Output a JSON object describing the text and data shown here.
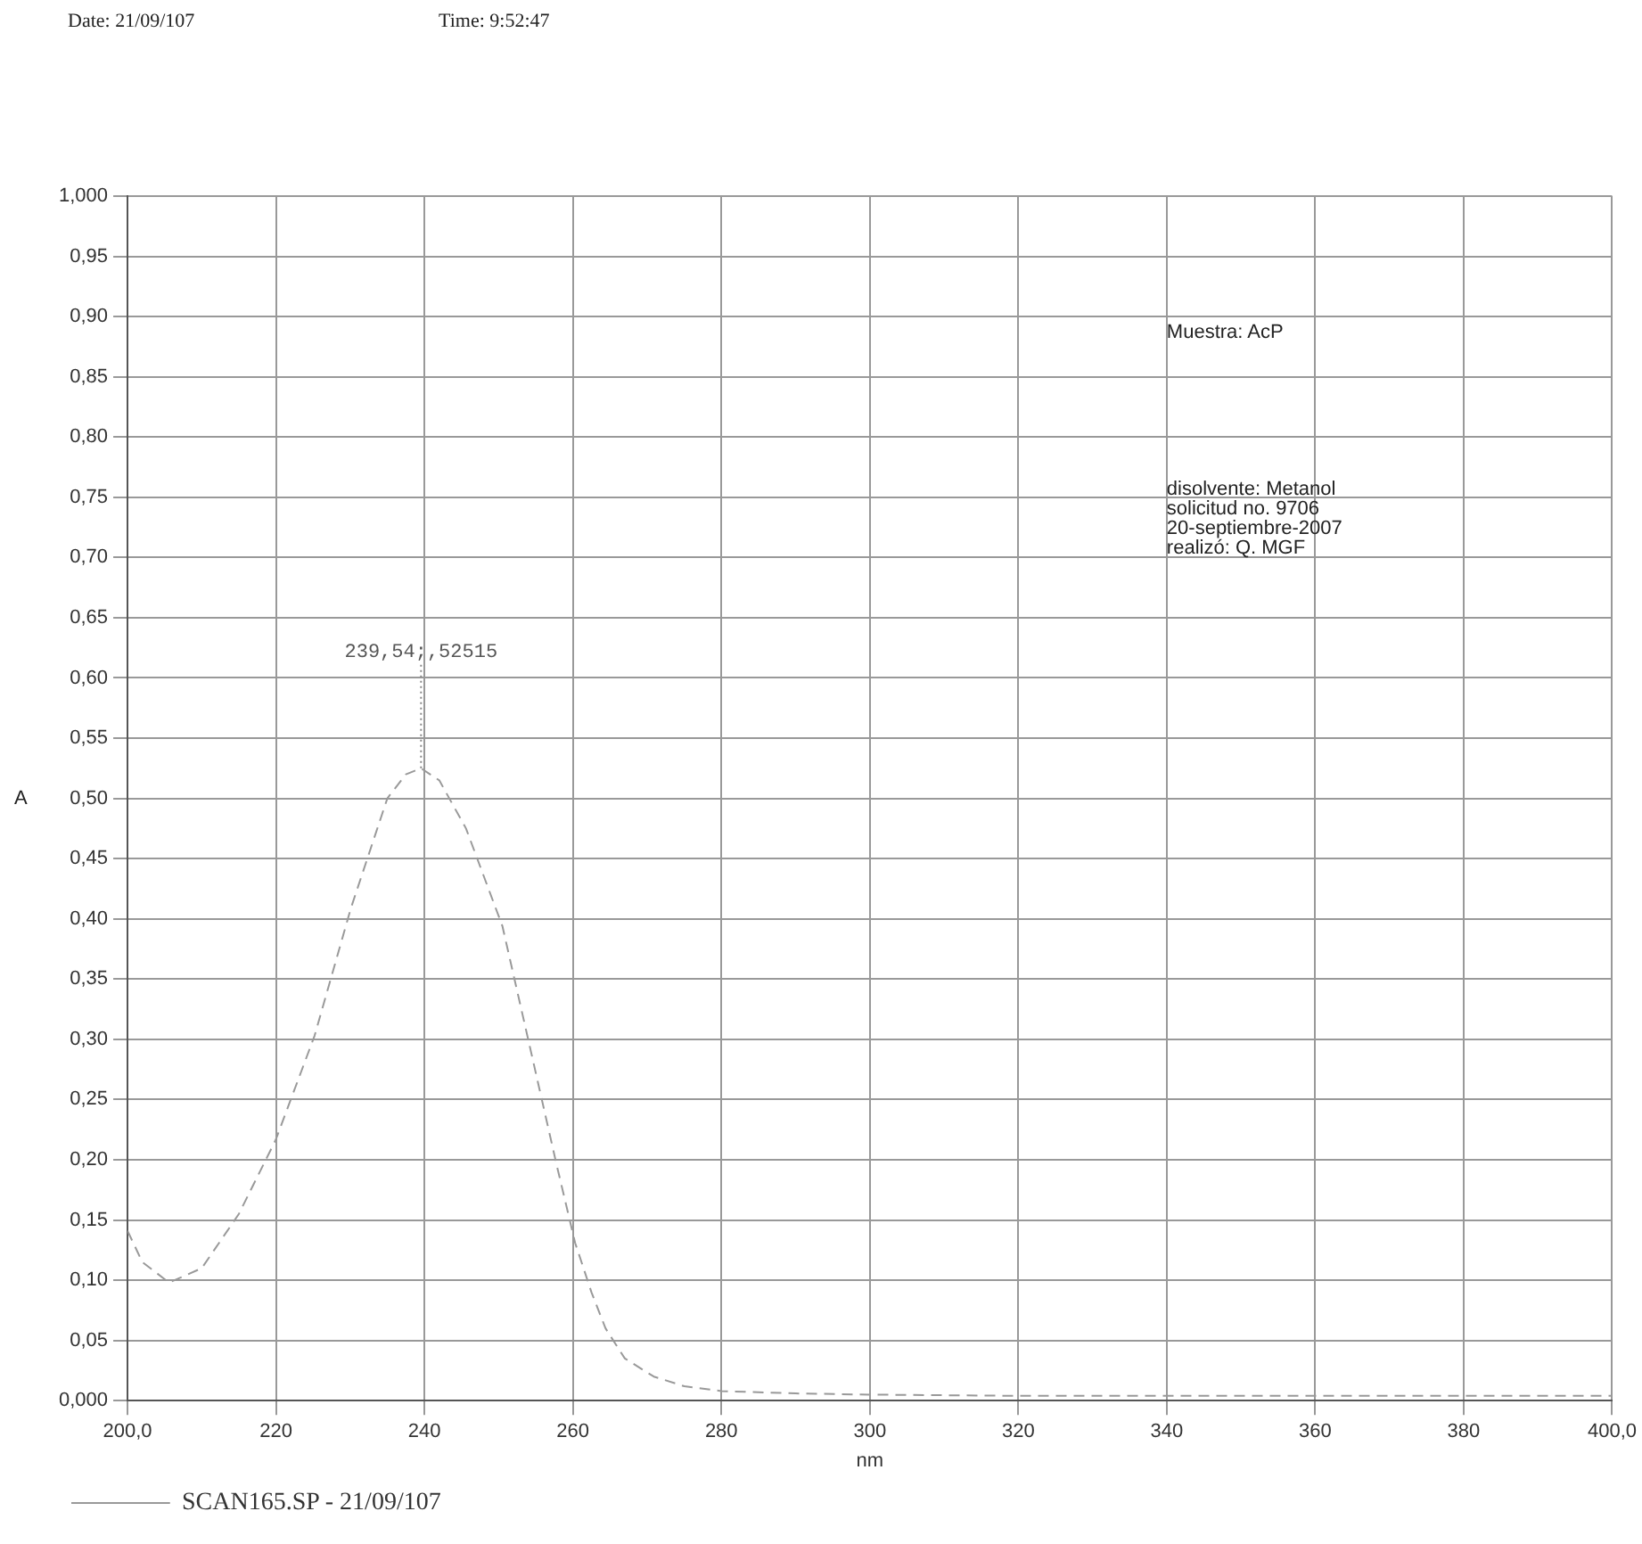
{
  "chart_data": {
    "type": "line",
    "title": "Date: 21/09/107",
    "subtitle": "Time: 9:52:47",
    "xlabel": "nm",
    "ylabel": "A",
    "xlim": [
      200,
      400
    ],
    "xticks": [
      {
        "value": 200,
        "label": "200,0"
      },
      220,
      240,
      260,
      280,
      300,
      320,
      340,
      360,
      380,
      {
        "value": 400,
        "label": "400,0"
      }
    ],
    "ylim": [
      0,
      1
    ],
    "yticks": [
      {
        "value": 0,
        "label": "0,000"
      },
      {
        "value": 0.05,
        "label": "0,05"
      },
      {
        "value": 0.1,
        "label": "0,10"
      },
      {
        "value": 0.15,
        "label": "0,15"
      },
      {
        "value": 0.2,
        "label": "0,20"
      },
      {
        "value": 0.25,
        "label": "0,25"
      },
      {
        "value": 0.3,
        "label": "0,30"
      },
      {
        "value": 0.35,
        "label": "0,35"
      },
      {
        "value": 0.4,
        "label": "0,40"
      },
      {
        "value": 0.45,
        "label": "0,45"
      },
      {
        "value": 0.5,
        "label": "0,50"
      },
      {
        "value": 0.55,
        "label": "0,55"
      },
      {
        "value": 0.6,
        "label": "0,60"
      },
      {
        "value": 0.65,
        "label": "0,65"
      },
      {
        "value": 0.7,
        "label": "0,70"
      },
      {
        "value": 0.75,
        "label": "0,75"
      },
      {
        "value": 0.8,
        "label": "0,80"
      },
      {
        "value": 0.85,
        "label": "0,85"
      },
      {
        "value": 0.9,
        "label": "0,90"
      },
      {
        "value": 0.95,
        "label": "0,95"
      },
      {
        "value": 1,
        "label": "1,000"
      }
    ],
    "grid": true,
    "legend": "bottom",
    "marker": "none",
    "line_style": "dashed",
    "series": [
      {
        "name": "SCAN165.SP - 21/09/107",
        "color": "#999999",
        "x": [
          200,
          202,
          205.6,
          210,
          215,
          220,
          225.2,
          230.1,
          235,
          237.5,
          239.54,
          242,
          245.6,
          250.5,
          254.6,
          257.8,
          260.3,
          262.5,
          264.4,
          267,
          270.9,
          275,
          280,
          290,
          300,
          320,
          340,
          360,
          380,
          400
        ],
        "values": [
          0.141,
          0.115,
          0.098,
          0.11,
          0.155,
          0.217,
          0.303,
          0.409,
          0.5,
          0.52,
          0.525,
          0.515,
          0.475,
          0.394,
          0.283,
          0.196,
          0.131,
          0.09,
          0.06,
          0.035,
          0.02,
          0.012,
          0.008,
          0.006,
          0.005,
          0.004,
          0.004,
          0.004,
          0.004,
          0.004
        ]
      }
    ],
    "annotations": [
      {
        "text": "239,54;,52515",
        "x": 239.54,
        "y": 0.525
      },
      "Muestra: AcP",
      "disolvente: Metanol",
      "solicitud no. 9706",
      "20-septiembre-2007",
      "realizó: Q. MGF"
    ]
  }
}
